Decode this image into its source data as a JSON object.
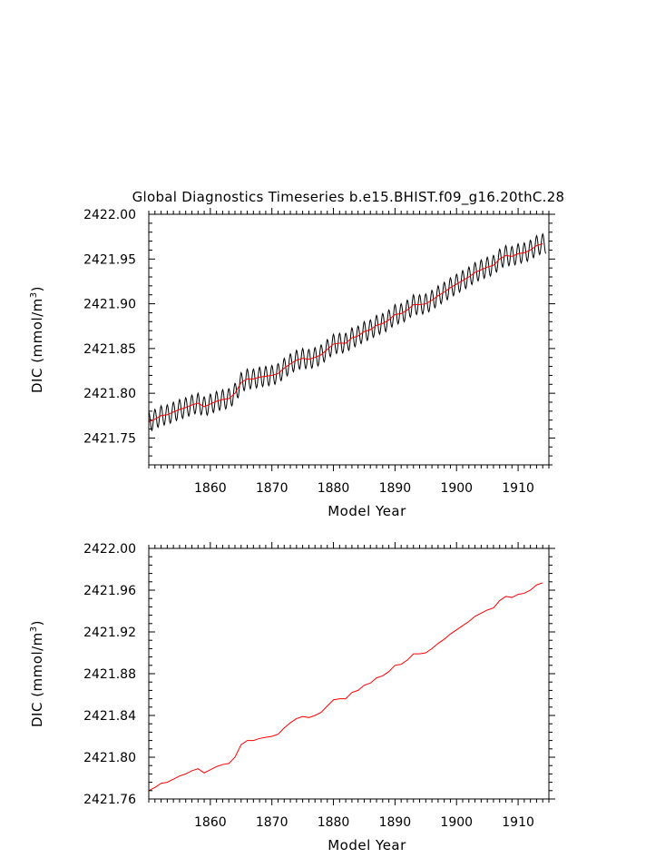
{
  "title": "Global Diagnostics Timeseries b.e15.BHIST.f09_g16.20thC.28",
  "chart_data": [
    {
      "type": "line",
      "xlabel": "Model Year",
      "ylabel_main": "DIC (mmol/m",
      "ylabel_sup": "3",
      "ylabel_end": ")",
      "xlim": [
        1850,
        1915
      ],
      "ylim": [
        2421.72,
        2422.0
      ],
      "xticks": [
        1860,
        1870,
        1880,
        1890,
        1900,
        1910
      ],
      "xtick_labels": [
        "1860",
        "1870",
        "1880",
        "1890",
        "1900",
        "1910"
      ],
      "yticks": [
        2421.75,
        2421.8,
        2421.85,
        2421.9,
        2421.95,
        2422.0
      ],
      "ytick_labels": [
        "2421.75",
        "2421.80",
        "2421.85",
        "2421.90",
        "2421.95",
        "2422.00"
      ],
      "series": [
        {
          "name": "monthly",
          "color": "#000000",
          "seasonal_amplitude": 0.011,
          "description_of_sampling": "12 samples per year, sinusoidal seasonal cycle around annual mean"
        },
        {
          "name": "annual_mean",
          "color": "#ff0000",
          "x": [
            1850,
            1851,
            1852,
            1853,
            1854,
            1855,
            1856,
            1857,
            1858,
            1859,
            1860,
            1861,
            1862,
            1863,
            1864,
            1865,
            1866,
            1867,
            1868,
            1869,
            1870,
            1871,
            1872,
            1873,
            1874,
            1875,
            1876,
            1877,
            1878,
            1879,
            1880,
            1881,
            1882,
            1883,
            1884,
            1885,
            1886,
            1887,
            1888,
            1889,
            1890,
            1891,
            1892,
            1893,
            1894,
            1895,
            1896,
            1897,
            1898,
            1899,
            1900,
            1901,
            1902,
            1903,
            1904,
            1905,
            1906,
            1907,
            1908,
            1909,
            1910,
            1911,
            1912,
            1913,
            1914
          ],
          "y": [
            2421.768,
            2421.771,
            2421.775,
            2421.776,
            2421.779,
            2421.782,
            2421.784,
            2421.787,
            2421.789,
            2421.785,
            2421.788,
            2421.791,
            2421.793,
            2421.794,
            2421.8,
            2421.812,
            2421.816,
            2421.816,
            2421.818,
            2421.819,
            2421.82,
            2421.822,
            2421.828,
            2421.833,
            2421.837,
            2421.839,
            2421.838,
            2421.84,
            2421.843,
            2421.849,
            2421.855,
            2421.856,
            2421.856,
            2421.862,
            2421.864,
            2421.869,
            2421.871,
            2421.876,
            2421.878,
            2421.882,
            2421.888,
            2421.889,
            2421.893,
            2421.899,
            2421.899,
            2421.9,
            2421.904,
            2421.909,
            2421.913,
            2421.918,
            2421.922,
            2421.926,
            2421.93,
            2421.935,
            2421.938,
            2421.941,
            2421.943,
            2421.95,
            2421.954,
            2421.953,
            2421.956,
            2421.957,
            2421.96,
            2421.965,
            2421.967
          ]
        }
      ]
    },
    {
      "type": "line",
      "xlabel": "Model Year",
      "ylabel_main": "DIC (mmol/m",
      "ylabel_sup": "3",
      "ylabel_end": ")",
      "xlim": [
        1850,
        1915
      ],
      "ylim": [
        2421.76,
        2422.0
      ],
      "xticks": [
        1860,
        1870,
        1880,
        1890,
        1900,
        1910
      ],
      "xtick_labels": [
        "1860",
        "1870",
        "1880",
        "1890",
        "1900",
        "1910"
      ],
      "yticks": [
        2421.76,
        2421.8,
        2421.84,
        2421.88,
        2421.92,
        2421.96,
        2422.0
      ],
      "ytick_labels": [
        "2421.76",
        "2421.80",
        "2421.84",
        "2421.88",
        "2421.92",
        "2421.96",
        "2422.00"
      ],
      "series": [
        {
          "name": "annual_mean",
          "color": "#ff0000",
          "x": [
            1850,
            1851,
            1852,
            1853,
            1854,
            1855,
            1856,
            1857,
            1858,
            1859,
            1860,
            1861,
            1862,
            1863,
            1864,
            1865,
            1866,
            1867,
            1868,
            1869,
            1870,
            1871,
            1872,
            1873,
            1874,
            1875,
            1876,
            1877,
            1878,
            1879,
            1880,
            1881,
            1882,
            1883,
            1884,
            1885,
            1886,
            1887,
            1888,
            1889,
            1890,
            1891,
            1892,
            1893,
            1894,
            1895,
            1896,
            1897,
            1898,
            1899,
            1900,
            1901,
            1902,
            1903,
            1904,
            1905,
            1906,
            1907,
            1908,
            1909,
            1910,
            1911,
            1912,
            1913,
            1914
          ],
          "y": [
            2421.768,
            2421.771,
            2421.775,
            2421.776,
            2421.779,
            2421.782,
            2421.784,
            2421.787,
            2421.789,
            2421.785,
            2421.788,
            2421.791,
            2421.793,
            2421.794,
            2421.8,
            2421.812,
            2421.816,
            2421.816,
            2421.818,
            2421.819,
            2421.82,
            2421.822,
            2421.828,
            2421.833,
            2421.837,
            2421.839,
            2421.838,
            2421.84,
            2421.843,
            2421.849,
            2421.855,
            2421.856,
            2421.856,
            2421.862,
            2421.864,
            2421.869,
            2421.871,
            2421.876,
            2421.878,
            2421.882,
            2421.888,
            2421.889,
            2421.893,
            2421.899,
            2421.899,
            2421.9,
            2421.904,
            2421.909,
            2421.913,
            2421.918,
            2421.922,
            2421.926,
            2421.93,
            2421.935,
            2421.938,
            2421.941,
            2421.943,
            2421.95,
            2421.954,
            2421.953,
            2421.956,
            2421.957,
            2421.96,
            2421.965,
            2421.967
          ]
        }
      ]
    }
  ]
}
